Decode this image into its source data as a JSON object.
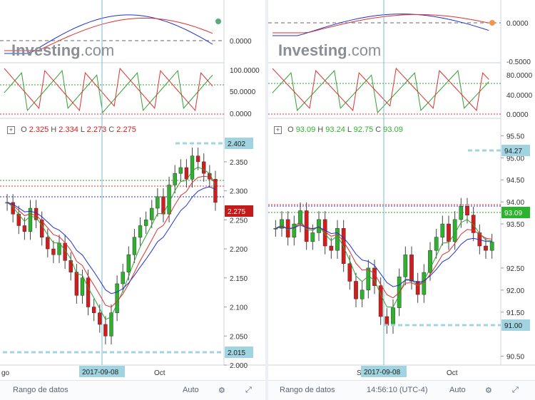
{
  "left": {
    "ohlc": {
      "o_label": "O",
      "o": "2.325",
      "h_label": "H",
      "h": "2.334",
      "l_label": "L",
      "l": "2.273",
      "c_label": "C",
      "c": "2.275"
    },
    "watermark": {
      "brand": "Investing",
      "suffix": ".com"
    },
    "osc_axis": [
      "0.0000"
    ],
    "stoch_axis": [
      "100.0000",
      "50.0000",
      "0.0000"
    ],
    "price_axis": [
      "2.350",
      "2.300",
      "2.250",
      "2.200",
      "2.150",
      "2.100",
      "2.050",
      "2.000"
    ],
    "tag_top": "2.402",
    "tag_last": "2.275",
    "tag_bottom": "2.015",
    "xaxis_left": "go",
    "xaxis_cross": "2017-09-08",
    "xaxis_oct": "Oct",
    "bottom": {
      "range": "Rango de datos",
      "auto": "Auto"
    }
  },
  "right": {
    "ohlc": {
      "o_label": "O",
      "o": "93.09",
      "h_label": "H",
      "h": "93.24",
      "l_label": "L",
      "l": "92.75",
      "c_label": "C",
      "c": "93.09"
    },
    "watermark": {
      "brand": "Investing",
      "suffix": ".com"
    },
    "osc_axis": [
      "0.0000",
      "-0.5000"
    ],
    "stoch_axis": [
      "80.0000",
      "40.0000",
      "0.0000"
    ],
    "price_axis": [
      "95.50",
      "95.00",
      "94.50",
      "94.00",
      "93.50",
      "92.50",
      "92.00",
      "91.50",
      "90.50"
    ],
    "tag_top": "94.27",
    "tag_last": "93.09",
    "tag_bottom": "91.00",
    "xaxis_left": "Se",
    "xaxis_cross": "2017-09-08",
    "xaxis_oct": "Oct",
    "bottom": {
      "range": "Rango de datos",
      "time": "14:56:10 (UTC-4)",
      "auto": "Auto"
    }
  },
  "colors": {
    "up": "#2cb22c",
    "down": "#d41c1c",
    "ma_blue": "#2030d0",
    "ma_red": "#e03030",
    "ma_green": "#30a030",
    "tag": "#9fd4e0",
    "cross": "#7ab8cc"
  },
  "chart_data": [
    {
      "type": "candlestick",
      "ylim": [
        2.0,
        2.41
      ],
      "last": {
        "o": 2.325,
        "h": 2.334,
        "l": 2.273,
        "c": 2.275
      },
      "closes": [
        2.28,
        2.26,
        2.24,
        2.23,
        2.27,
        2.25,
        2.22,
        2.2,
        2.19,
        2.21,
        2.18,
        2.16,
        2.12,
        2.15,
        2.1,
        2.09,
        2.07,
        2.05,
        2.09,
        2.14,
        2.16,
        2.19,
        2.22,
        2.24,
        2.25,
        2.27,
        2.29,
        2.26,
        2.31,
        2.33,
        2.34,
        2.32,
        2.36,
        2.35,
        2.33,
        2.32,
        2.28
      ]
    },
    {
      "type": "candlestick",
      "ylim": [
        90.3,
        95.7
      ],
      "last": {
        "o": 93.09,
        "h": 93.24,
        "l": 92.75,
        "c": 93.09
      },
      "closes": [
        93.4,
        93.6,
        93.2,
        93.5,
        93.8,
        93.1,
        93.3,
        93.6,
        93.0,
        92.9,
        93.4,
        92.6,
        92.2,
        91.8,
        92.0,
        92.5,
        92.1,
        91.4,
        91.2,
        91.6,
        92.3,
        92.8,
        92.2,
        91.9,
        92.4,
        92.9,
        93.2,
        93.5,
        93.1,
        93.6,
        93.9,
        93.7,
        93.3,
        93.0,
        92.9,
        93.09
      ]
    }
  ]
}
